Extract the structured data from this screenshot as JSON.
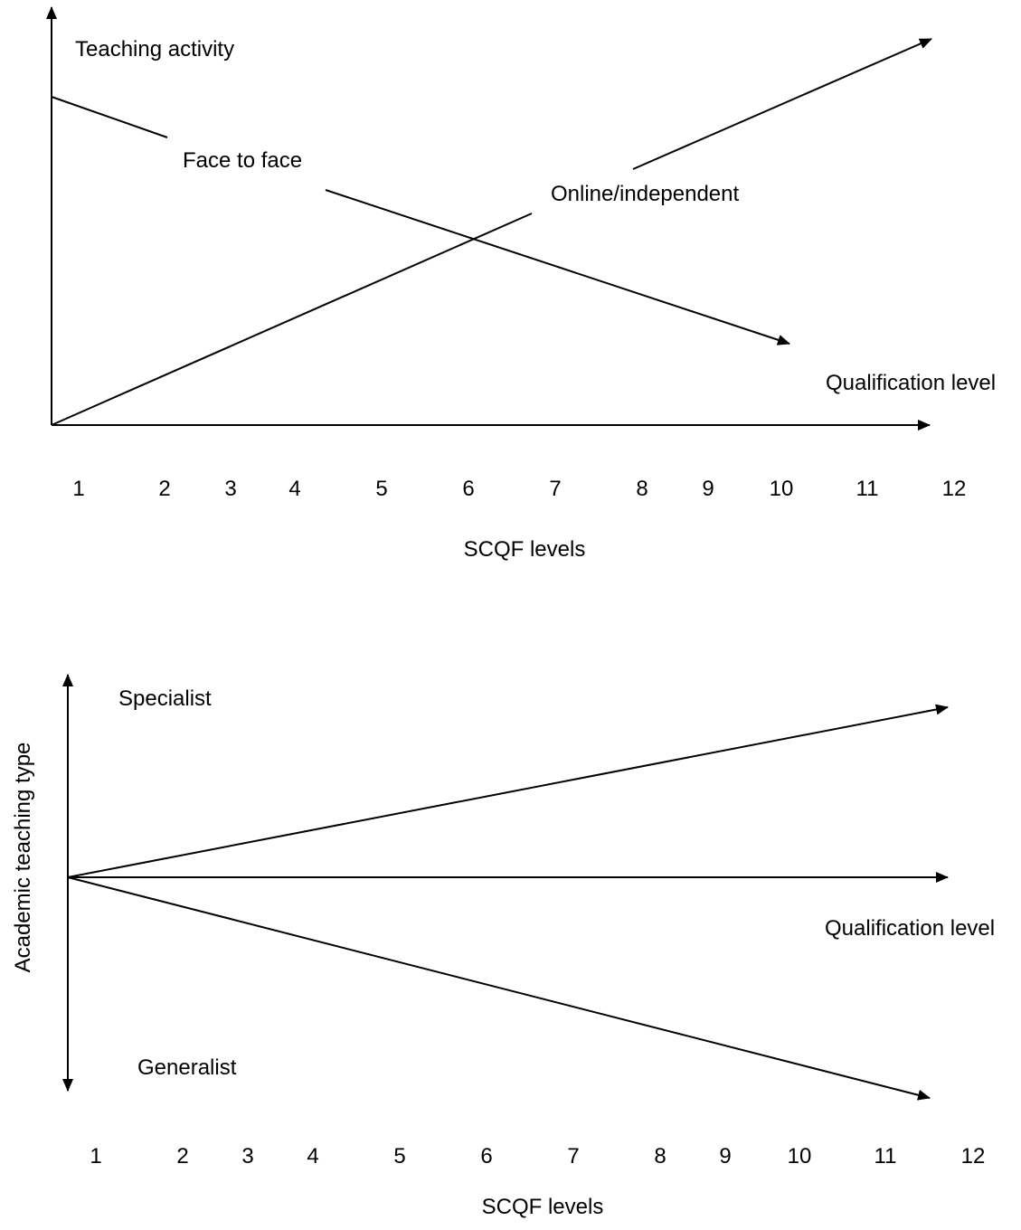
{
  "diagram1": {
    "y_label": "Teaching activity",
    "face_label": "Face to face",
    "online_label": "Online/independent",
    "x_label": "Qualification level",
    "ticks": [
      "1",
      "2",
      "3",
      "4",
      "5",
      "6",
      "7",
      "8",
      "9",
      "10",
      "11",
      "12"
    ],
    "scale_label": "SCQF levels"
  },
  "diagram2": {
    "y_label": "Academic teaching type",
    "top_label": "Specialist",
    "bottom_label": "Generalist",
    "x_label": "Qualification level",
    "ticks": [
      "1",
      "2",
      "3",
      "4",
      "5",
      "6",
      "7",
      "8",
      "9",
      "10",
      "11",
      "12"
    ],
    "scale_label": "SCQF levels"
  }
}
